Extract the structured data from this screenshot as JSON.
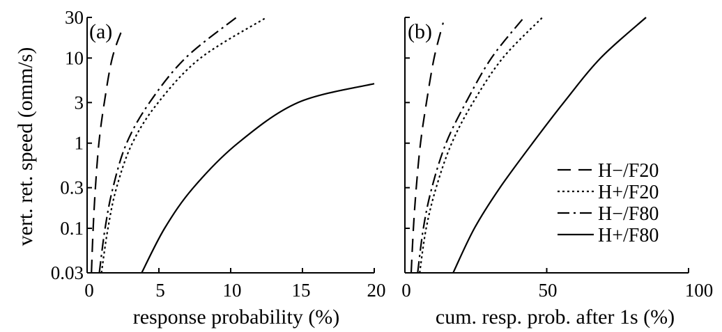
{
  "chart_data": [
    {
      "type": "line",
      "panel_label": "(a)",
      "xlabel": "response probability (%)",
      "ylabel": "vert. ret. speed (omm/s)",
      "xlim": [
        0,
        20
      ],
      "ylim": [
        0.03,
        30
      ],
      "y_scale": "log",
      "x_ticks": [
        0,
        5,
        10,
        15,
        20
      ],
      "y_ticks": [
        0.03,
        0.1,
        0.3,
        1,
        3,
        10,
        30
      ],
      "x_tick_labels": [
        "0",
        "5",
        "10",
        "15",
        "20"
      ],
      "y_tick_labels": [
        "0.03",
        "0.1",
        "0.3",
        "1",
        "3",
        "10",
        "30"
      ],
      "grid": false,
      "series": [
        {
          "name": "H−/F20",
          "style": "dashed",
          "color": "#000000",
          "points": [
            [
              0.3,
              0.03
            ],
            [
              0.42,
              0.1
            ],
            [
              0.58,
              0.3
            ],
            [
              0.82,
              1
            ],
            [
              1.2,
              3
            ],
            [
              1.75,
              10
            ],
            [
              2.5,
              23
            ]
          ]
        },
        {
          "name": "H+/F20",
          "style": "dotted",
          "color": "#000000",
          "points": [
            [
              1.0,
              0.03
            ],
            [
              1.45,
              0.1
            ],
            [
              2.05,
              0.3
            ],
            [
              3.15,
              1
            ],
            [
              4.95,
              3
            ],
            [
              7.9,
              10
            ],
            [
              12.5,
              30
            ]
          ]
        },
        {
          "name": "H−/F80",
          "style": "dashdot",
          "color": "#000000",
          "points": [
            [
              0.85,
              0.03
            ],
            [
              1.25,
              0.1
            ],
            [
              1.8,
              0.3
            ],
            [
              2.75,
              1
            ],
            [
              4.35,
              3
            ],
            [
              6.85,
              10
            ],
            [
              10.4,
              30
            ]
          ]
        },
        {
          "name": "H+/F80",
          "style": "solid",
          "color": "#000000",
          "points": [
            [
              3.8,
              0.03
            ],
            [
              5.4,
              0.1
            ],
            [
              7.4,
              0.3
            ],
            [
              10.5,
              1
            ],
            [
              14.7,
              3
            ],
            [
              20,
              5
            ]
          ]
        }
      ]
    },
    {
      "type": "line",
      "panel_label": "(b)",
      "xlabel": "cum. resp. prob. after 1s (%)",
      "ylabel": "",
      "xlim": [
        0,
        100
      ],
      "ylim": [
        0.03,
        30
      ],
      "y_scale": "log",
      "x_ticks": [
        0,
        50,
        100
      ],
      "y_ticks": [
        0.03,
        0.1,
        0.3,
        1,
        3,
        10,
        30
      ],
      "x_tick_labels": [
        "0",
        "50",
        "100"
      ],
      "grid": false,
      "series": [
        {
          "name": "H−/F20",
          "style": "dashed",
          "color": "#000000",
          "points": [
            [
              2.2,
              0.03
            ],
            [
              3.0,
              0.1
            ],
            [
              4.0,
              0.3
            ],
            [
              5.5,
              1
            ],
            [
              7.6,
              3
            ],
            [
              10.3,
              10
            ],
            [
              13.5,
              26
            ]
          ]
        },
        {
          "name": "H+/F20",
          "style": "dotted",
          "color": "#000000",
          "points": [
            [
              5.2,
              0.03
            ],
            [
              7.5,
              0.1
            ],
            [
              11.0,
              0.3
            ],
            [
              16.5,
              1
            ],
            [
              24.0,
              3
            ],
            [
              34.5,
              10
            ],
            [
              48.5,
              30
            ]
          ]
        },
        {
          "name": "H−/F80",
          "style": "dashdot",
          "color": "#000000",
          "points": [
            [
              4.5,
              0.03
            ],
            [
              6.5,
              0.1
            ],
            [
              9.5,
              0.3
            ],
            [
              14.5,
              1
            ],
            [
              21.5,
              3
            ],
            [
              30.5,
              10
            ],
            [
              42.0,
              30
            ]
          ]
        },
        {
          "name": "H+/F80",
          "style": "solid",
          "color": "#000000",
          "points": [
            [
              17.0,
              0.03
            ],
            [
              24.5,
              0.1
            ],
            [
              33.5,
              0.3
            ],
            [
              45.0,
              1
            ],
            [
              56.0,
              3
            ],
            [
              69.0,
              10
            ],
            [
              85.0,
              30
            ]
          ]
        }
      ]
    }
  ],
  "legend": {
    "position": "right",
    "entries": [
      {
        "label": "H−/F20",
        "style": "dashed"
      },
      {
        "label": "H+/F20",
        "style": "dotted"
      },
      {
        "label": "H−/F80",
        "style": "dashdot"
      },
      {
        "label": "H+/F80",
        "style": "solid"
      }
    ]
  }
}
